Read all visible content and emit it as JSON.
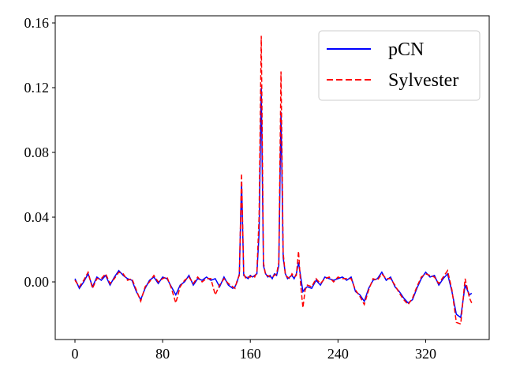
{
  "chart_data": {
    "type": "line",
    "x": [
      0,
      4,
      8,
      12,
      16,
      20,
      24,
      28,
      32,
      36,
      40,
      44,
      48,
      52,
      56,
      60,
      64,
      68,
      72,
      76,
      80,
      84,
      88,
      92,
      96,
      100,
      104,
      108,
      112,
      116,
      120,
      124,
      128,
      132,
      136,
      140,
      144,
      146,
      148,
      150,
      152,
      154,
      156,
      158,
      160,
      162,
      164,
      166,
      168,
      170,
      172,
      174,
      176,
      178,
      180,
      182,
      184,
      186,
      188,
      190,
      192,
      194,
      196,
      198,
      200,
      202,
      204,
      206,
      208,
      210,
      212,
      216,
      220,
      224,
      228,
      232,
      236,
      240,
      244,
      248,
      252,
      256,
      260,
      264,
      268,
      272,
      276,
      280,
      284,
      288,
      292,
      296,
      300,
      304,
      308,
      312,
      316,
      320,
      324,
      328,
      332,
      336,
      340,
      344,
      348,
      352,
      356,
      360,
      362
    ],
    "series": [
      {
        "name": "pCN",
        "color": "#0000ff",
        "dash": false,
        "values": [
          0.002,
          -0.004,
          0.0,
          0.005,
          -0.003,
          0.003,
          0.001,
          0.004,
          -0.002,
          0.003,
          0.007,
          0.004,
          0.002,
          0.001,
          -0.006,
          -0.011,
          -0.004,
          0.001,
          0.003,
          -0.001,
          0.003,
          0.002,
          -0.003,
          -0.008,
          -0.002,
          0.0,
          0.004,
          -0.002,
          0.002,
          0.001,
          0.003,
          0.001,
          0.002,
          -0.003,
          0.003,
          -0.002,
          -0.004,
          -0.003,
          0.0,
          0.005,
          0.062,
          0.004,
          0.003,
          0.002,
          0.004,
          0.003,
          0.004,
          0.005,
          0.03,
          0.12,
          0.01,
          0.005,
          0.003,
          0.004,
          0.002,
          0.005,
          0.004,
          0.01,
          0.105,
          0.015,
          0.005,
          0.002,
          0.003,
          0.004,
          0.002,
          0.005,
          0.012,
          0.003,
          -0.006,
          -0.004,
          -0.003,
          -0.004,
          0.001,
          -0.002,
          0.003,
          0.002,
          0.001,
          0.002,
          0.003,
          0.001,
          0.003,
          -0.006,
          -0.008,
          -0.012,
          -0.004,
          0.001,
          0.002,
          0.006,
          0.001,
          0.003,
          -0.003,
          -0.006,
          -0.01,
          -0.013,
          -0.011,
          -0.004,
          0.002,
          0.006,
          0.003,
          0.004,
          -0.002,
          0.002,
          0.005,
          -0.006,
          -0.02,
          -0.022,
          -0.002,
          -0.008,
          -0.007
        ]
      },
      {
        "name": "Sylvester",
        "color": "#ff0000",
        "dash": true,
        "values": [
          0.001,
          -0.003,
          0.001,
          0.006,
          -0.004,
          0.002,
          0.002,
          0.005,
          -0.001,
          0.002,
          0.006,
          0.005,
          0.001,
          0.002,
          -0.005,
          -0.012,
          -0.003,
          0.0,
          0.004,
          0.0,
          0.002,
          0.003,
          -0.004,
          -0.013,
          -0.003,
          0.001,
          0.003,
          -0.001,
          0.003,
          0.0,
          0.002,
          0.002,
          -0.008,
          -0.002,
          0.002,
          -0.001,
          -0.003,
          -0.004,
          0.001,
          0.004,
          0.067,
          0.005,
          0.002,
          0.003,
          0.003,
          0.004,
          0.003,
          0.006,
          0.04,
          0.152,
          0.012,
          0.004,
          0.004,
          0.003,
          0.003,
          0.004,
          0.005,
          0.012,
          0.13,
          0.018,
          0.004,
          0.003,
          0.002,
          0.005,
          0.003,
          0.004,
          0.019,
          -0.002,
          -0.016,
          -0.005,
          -0.002,
          -0.003,
          0.002,
          -0.001,
          0.002,
          0.003,
          0.0,
          0.003,
          0.002,
          0.002,
          0.002,
          -0.005,
          -0.009,
          -0.014,
          -0.005,
          0.002,
          0.001,
          0.005,
          0.002,
          0.002,
          -0.002,
          -0.007,
          -0.011,
          -0.014,
          -0.01,
          -0.003,
          0.003,
          0.005,
          0.004,
          0.003,
          -0.001,
          0.003,
          0.007,
          -0.005,
          -0.025,
          -0.026,
          0.002,
          -0.01,
          -0.013
        ]
      }
    ],
    "xlim": [
      -18,
      378
    ],
    "ylim": [
      -0.0356,
      0.1644
    ],
    "xticks": [
      0,
      80,
      160,
      240,
      320
    ],
    "yticks": [
      {
        "value": 0,
        "label": "0.00"
      },
      0.04,
      0.08,
      0.12,
      0.16
    ],
    "legend": "upper right"
  }
}
